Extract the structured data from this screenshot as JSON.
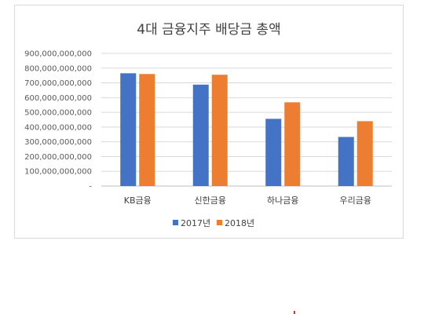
{
  "chart_data": {
    "type": "bar",
    "title": "4대 금융지주 배당금 총액",
    "categories": [
      "KB금융",
      "신한금융",
      "하나금융",
      "우리금융"
    ],
    "series": [
      {
        "name": "2017년",
        "color": "#4472c4",
        "values": [
          765000000000,
          688000000000,
          456000000000,
          333000000000
        ]
      },
      {
        "name": "2018년",
        "color": "#ed7d31",
        "values": [
          760000000000,
          755000000000,
          568000000000,
          440000000000
        ]
      }
    ],
    "ylim": [
      0,
      900000000000
    ],
    "ytick_labels": [
      "-",
      "100,000,000,000",
      "200,000,000,000",
      "300,000,000,000",
      "400,000,000,000",
      "500,000,000,000",
      "600,000,000,000",
      "700,000,000,000",
      "800,000,000,000",
      "900,000,000,000"
    ],
    "grid": true,
    "legend": "bottom"
  }
}
